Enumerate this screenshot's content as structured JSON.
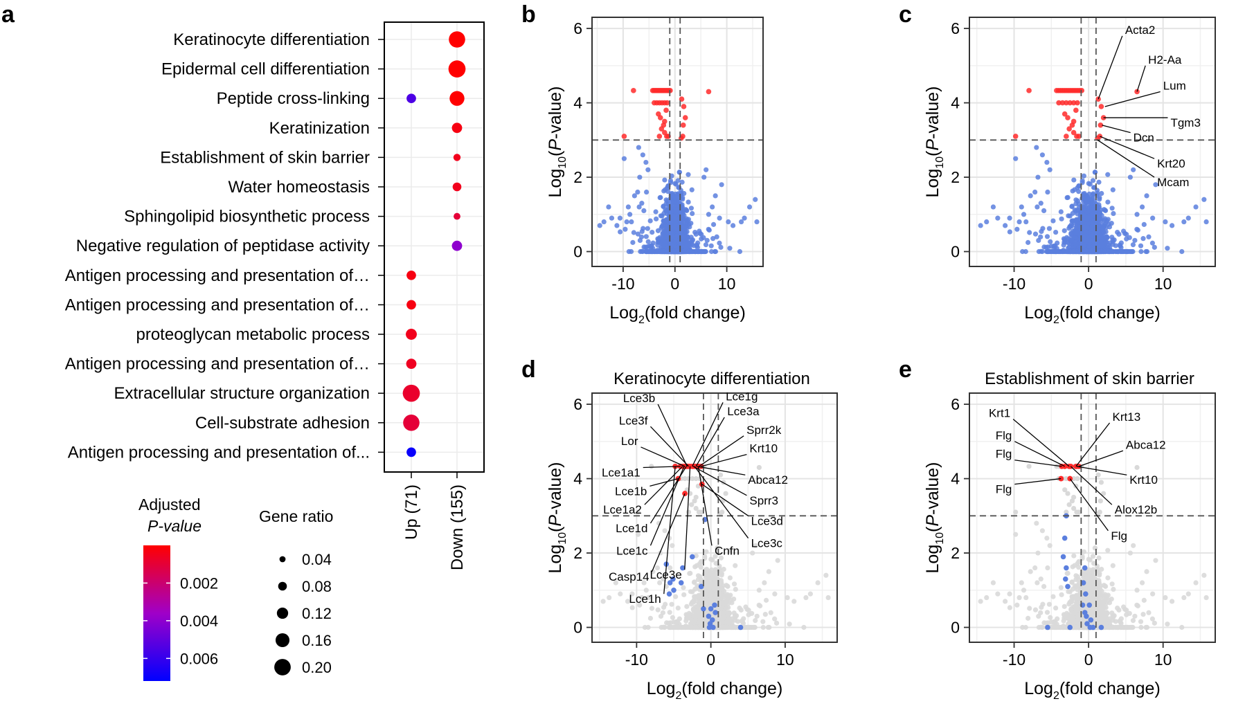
{
  "panels": [
    "a",
    "b",
    "c",
    "d",
    "e"
  ],
  "colors": {
    "pHigh": "#ff0000",
    "pMid": "#a000c8",
    "pLow": "#0000ff",
    "upregDot": "#5b7fde",
    "sig": "#ff2a2a",
    "grey": "#d9d9d9"
  },
  "chart_data": [
    {
      "id": "a",
      "type": "scatter",
      "title": "",
      "xlabel": "",
      "ylabel": "",
      "categories": [
        "Up (71)",
        "Down (155)"
      ],
      "terms": [
        "Keratinocyte differentiation",
        "Epidermal cell differentiation",
        "Peptide cross-linking",
        "Keratinization",
        "Establishment of skin barrier",
        "Water homeostasis",
        "Sphingolipid biosynthetic process",
        "Negative regulation of peptidase activity",
        "Antigen processing and presentation of…",
        "Antigen processing and presentation of…",
        "proteoglycan metabolic process",
        "Antigen processing and presentation of…",
        "Extracellular structure organization",
        "Cell-substrate adhesion",
        "Antigen processing and presentation of..."
      ],
      "points": [
        {
          "term": 0,
          "group": "Down (155)",
          "gene_ratio": 0.16,
          "padj": 0.0
        },
        {
          "term": 1,
          "group": "Down (155)",
          "gene_ratio": 0.17,
          "padj": 0.0
        },
        {
          "term": 2,
          "group": "Up (71)",
          "gene_ratio": 0.07,
          "padj": 0.0055
        },
        {
          "term": 2,
          "group": "Down (155)",
          "gene_ratio": 0.14,
          "padj": 0.0
        },
        {
          "term": 3,
          "group": "Down (155)",
          "gene_ratio": 0.08,
          "padj": 0.0003
        },
        {
          "term": 4,
          "group": "Down (155)",
          "gene_ratio": 0.04,
          "padj": 0.0005
        },
        {
          "term": 5,
          "group": "Down (155)",
          "gene_ratio": 0.06,
          "padj": 0.0005
        },
        {
          "term": 6,
          "group": "Down (155)",
          "gene_ratio": 0.035,
          "padj": 0.001
        },
        {
          "term": 7,
          "group": "Down (155)",
          "gene_ratio": 0.08,
          "padj": 0.004
        },
        {
          "term": 8,
          "group": "Up (71)",
          "gene_ratio": 0.07,
          "padj": 0.0003
        },
        {
          "term": 9,
          "group": "Up (71)",
          "gene_ratio": 0.07,
          "padj": 0.0003
        },
        {
          "term": 10,
          "group": "Up (71)",
          "gene_ratio": 0.09,
          "padj": 0.0005
        },
        {
          "term": 11,
          "group": "Up (71)",
          "gene_ratio": 0.08,
          "padj": 0.0006
        },
        {
          "term": 12,
          "group": "Up (71)",
          "gene_ratio": 0.17,
          "padj": 0.0008
        },
        {
          "term": 13,
          "group": "Up (71)",
          "gene_ratio": 0.16,
          "padj": 0.001
        },
        {
          "term": 14,
          "group": "Up (71)",
          "gene_ratio": 0.07,
          "padj": 0.007
        }
      ],
      "color_legend": {
        "title_line1": "Adjusted",
        "title_line2": "P-value",
        "ticks": [
          "0.002",
          "0.004",
          "0.006"
        ],
        "tick_values": [
          0.002,
          0.004,
          0.006
        ],
        "range": [
          0,
          0.0072
        ]
      },
      "size_legend": {
        "title": "Gene ratio",
        "labels": [
          "0.04",
          "0.08",
          "0.12",
          "0.16",
          "0.20"
        ],
        "values": [
          0.04,
          0.08,
          0.12,
          0.16,
          0.2
        ]
      }
    },
    {
      "id": "b",
      "type": "scatter",
      "title": "",
      "xlabel": "Log2(fold change)",
      "ylabel": "Log10(P-value)",
      "xlim": [
        -16,
        17
      ],
      "ylim": [
        -0.4,
        6.3
      ],
      "xticks": [
        -10,
        0,
        10
      ],
      "xtick_labels": [
        "-10",
        "0",
        "10"
      ],
      "yticks": [
        0,
        2,
        4,
        6
      ],
      "ytick_labels": [
        "0",
        "2",
        "4",
        "6"
      ],
      "thresholds": {
        "x": [
          -1,
          1
        ],
        "y": 3
      },
      "highlight": "none",
      "labels": []
    },
    {
      "id": "c",
      "type": "scatter",
      "title": "",
      "xlabel": "Log2(fold change)",
      "ylabel": "Log10(P-value)",
      "xlim": [
        -16,
        17
      ],
      "ylim": [
        -0.4,
        6.3
      ],
      "xticks": [
        -10,
        0,
        10
      ],
      "xtick_labels": [
        "-10",
        "0",
        "10"
      ],
      "yticks": [
        0,
        2,
        4,
        6
      ],
      "ytick_labels": [
        "0",
        "2",
        "4",
        "6"
      ],
      "thresholds": {
        "x": [
          -1,
          1
        ],
        "y": 3
      },
      "highlight": "none",
      "labels": [
        {
          "gene": "Acta2",
          "x": 1.3,
          "y": 4.1,
          "lx": 4.9,
          "ly": 5.8,
          "side": "right"
        },
        {
          "gene": "H2-Aa",
          "x": 6.5,
          "y": 4.3,
          "lx": 8.0,
          "ly": 5.0,
          "side": "right"
        },
        {
          "gene": "Lum",
          "x": 2.2,
          "y": 3.9,
          "lx": 10.0,
          "ly": 4.3,
          "side": "right"
        },
        {
          "gene": "Tgm3",
          "x": 2.0,
          "y": 3.6,
          "lx": 11.0,
          "ly": 3.6,
          "side": "right"
        },
        {
          "gene": "Dcn",
          "x": 1.8,
          "y": 3.4,
          "lx": 6.0,
          "ly": 3.2,
          "side": "right"
        },
        {
          "gene": "Krt20",
          "x": 1.5,
          "y": 3.1,
          "lx": 9.2,
          "ly": 2.5,
          "side": "right"
        },
        {
          "gene": "Mcam",
          "x": 1.2,
          "y": 3.0,
          "lx": 9.2,
          "ly": 2.0,
          "side": "right"
        }
      ]
    },
    {
      "id": "d",
      "type": "scatter",
      "title": "Keratinocyte differentiation",
      "xlabel": "Log2(fold change)",
      "ylabel": "Log10(P-value)",
      "xlim": [
        -16,
        17
      ],
      "ylim": [
        -0.4,
        6.3
      ],
      "xticks": [
        -10,
        0,
        10
      ],
      "xtick_labels": [
        "-10",
        "0",
        "10"
      ],
      "yticks": [
        0,
        2,
        4,
        6
      ],
      "ytick_labels": [
        "0",
        "2",
        "4",
        "6"
      ],
      "thresholds": {
        "x": [
          -1,
          1
        ],
        "y": 3
      },
      "highlight": "set",
      "labels": [
        {
          "gene": "Lce3b",
          "x": -3.2,
          "y": 4.33,
          "lx": -7.5,
          "ly": 6.0,
          "side": "left"
        },
        {
          "gene": "Lce3f",
          "x": -3.0,
          "y": 4.33,
          "lx": -8.5,
          "ly": 5.4,
          "side": "left"
        },
        {
          "gene": "Lor",
          "x": -3.5,
          "y": 4.33,
          "lx": -9.8,
          "ly": 4.85,
          "side": "left"
        },
        {
          "gene": "Lce1a1",
          "x": -4.1,
          "y": 4.33,
          "lx": -9.5,
          "ly": 4.3,
          "side": "left"
        },
        {
          "gene": "Lce1b",
          "x": -4.4,
          "y": 4.0,
          "lx": -8.6,
          "ly": 3.8,
          "side": "left"
        },
        {
          "gene": "Lce1a2",
          "x": -3.8,
          "y": 4.33,
          "lx": -9.3,
          "ly": 3.3,
          "side": "left"
        },
        {
          "gene": "Lce1d",
          "x": -3.3,
          "y": 4.33,
          "lx": -8.5,
          "ly": 2.8,
          "side": "left"
        },
        {
          "gene": "Lce1c",
          "x": -3.6,
          "y": 4.33,
          "lx": -8.5,
          "ly": 2.2,
          "side": "left"
        },
        {
          "gene": "Casp14",
          "x": -3.5,
          "y": 3.6,
          "lx": -8.3,
          "ly": 1.5,
          "side": "left"
        },
        {
          "gene": "Lce1h",
          "x": -4.8,
          "y": 4.33,
          "lx": -6.7,
          "ly": 0.9,
          "side": "left"
        },
        {
          "gene": "Lce3e",
          "x": -2.8,
          "y": 4.33,
          "lx": -3.9,
          "ly": 1.55,
          "side": "left"
        },
        {
          "gene": "Cnfn",
          "x": -1.7,
          "y": 4.33,
          "lx": 0.5,
          "ly": 2.2,
          "side": "right"
        },
        {
          "gene": "Lce1g",
          "x": -2.5,
          "y": 4.33,
          "lx": 2.0,
          "ly": 6.05,
          "side": "right"
        },
        {
          "gene": "Lce3a",
          "x": -2.0,
          "y": 4.33,
          "lx": 2.2,
          "ly": 5.65,
          "side": "right"
        },
        {
          "gene": "Sprr2k",
          "x": -1.6,
          "y": 4.33,
          "lx": 4.8,
          "ly": 5.15,
          "side": "right"
        },
        {
          "gene": "Krt10",
          "x": -1.3,
          "y": 4.33,
          "lx": 5.2,
          "ly": 4.65,
          "side": "right"
        },
        {
          "gene": "Abca12",
          "x": -1.9,
          "y": 4.33,
          "lx": 5.0,
          "ly": 4.1,
          "side": "right"
        },
        {
          "gene": "Sprr3",
          "x": -2.4,
          "y": 4.33,
          "lx": 5.2,
          "ly": 3.55,
          "side": "right"
        },
        {
          "gene": "Lce3d",
          "x": -1.2,
          "y": 3.85,
          "lx": 5.4,
          "ly": 3.0,
          "side": "right"
        },
        {
          "gene": "Lce3c",
          "x": -2.2,
          "y": 4.33,
          "lx": 5.4,
          "ly": 2.4,
          "side": "right"
        }
      ]
    },
    {
      "id": "e",
      "type": "scatter",
      "title": "Establishment of skin barrier",
      "xlabel": "Log2(fold change)",
      "ylabel": "Log10(P-value)",
      "xlim": [
        -16,
        17
      ],
      "ylim": [
        -0.4,
        6.3
      ],
      "xticks": [
        -10,
        0,
        10
      ],
      "xtick_labels": [
        "-10",
        "0",
        "10"
      ],
      "yticks": [
        0,
        2,
        4,
        6
      ],
      "ytick_labels": [
        "0",
        "2",
        "4",
        "6"
      ],
      "thresholds": {
        "x": [
          -1,
          1
        ],
        "y": 3
      },
      "highlight": "set",
      "labels": [
        {
          "gene": "Krt1",
          "x": -2.6,
          "y": 4.33,
          "lx": -10.5,
          "ly": 5.6,
          "side": "left"
        },
        {
          "gene": "Flg",
          "x": -3.2,
          "y": 4.33,
          "lx": -10.3,
          "ly": 5.0,
          "side": "left"
        },
        {
          "gene": "Flg",
          "x": -3.6,
          "y": 4.33,
          "lx": -10.3,
          "ly": 4.5,
          "side": "left"
        },
        {
          "gene": "Flg",
          "x": -3.7,
          "y": 4.0,
          "lx": -10.3,
          "ly": 3.85,
          "side": "left"
        },
        {
          "gene": "Krt13",
          "x": -1.7,
          "y": 4.33,
          "lx": 3.2,
          "ly": 5.5,
          "side": "right"
        },
        {
          "gene": "Abca12",
          "x": -1.3,
          "y": 4.33,
          "lx": 5.0,
          "ly": 4.75,
          "side": "right"
        },
        {
          "gene": "Krt10",
          "x": -1.6,
          "y": 4.33,
          "lx": 5.5,
          "ly": 4.1,
          "side": "right"
        },
        {
          "gene": "Alox12b",
          "x": -2.4,
          "y": 4.33,
          "lx": 3.5,
          "ly": 3.3,
          "side": "right"
        },
        {
          "gene": "Flg",
          "x": -2.5,
          "y": 4.0,
          "lx": 3.0,
          "ly": 2.6,
          "side": "right"
        }
      ]
    }
  ]
}
